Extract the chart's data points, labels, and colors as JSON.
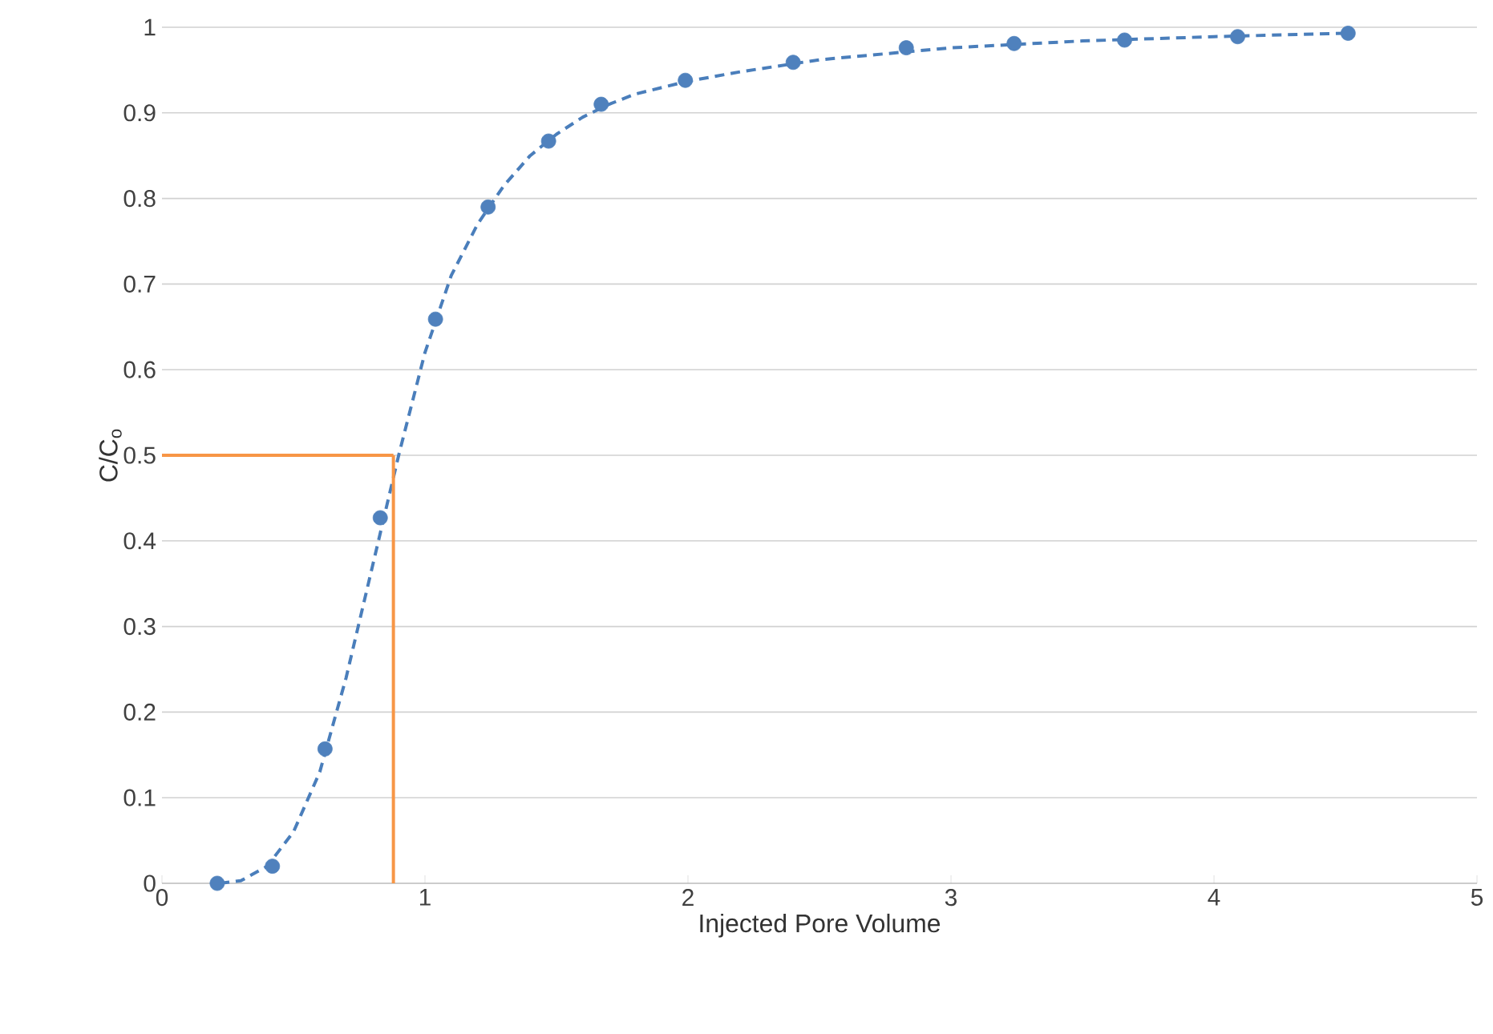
{
  "chart_data": {
    "type": "scatter",
    "xlabel": "Injected Pore Volume",
    "ylabel": "C/C$_{o}$",
    "xlim": [
      0,
      5
    ],
    "ylim": [
      0,
      1
    ],
    "xticks": [
      0,
      1,
      2,
      3,
      4,
      5
    ],
    "yticks": [
      0,
      0.1,
      0.2,
      0.3,
      0.4,
      0.5,
      0.6,
      0.7,
      0.8,
      0.9,
      1
    ],
    "grid": "y",
    "series": [
      {
        "type": "line",
        "color": "#4a7ebb",
        "line_style": "dashed",
        "marker": "none",
        "x": [
          0.22,
          0.3,
          0.4,
          0.5,
          0.6,
          0.7,
          0.8,
          0.9,
          1.0,
          1.1,
          1.2,
          1.3,
          1.4,
          1.5,
          1.6,
          1.7,
          1.8,
          2.0,
          2.2,
          2.5,
          3.0,
          3.5,
          4.0,
          4.5
        ],
        "values": [
          0,
          0.003,
          0.02,
          0.06,
          0.13,
          0.24,
          0.37,
          0.5,
          0.62,
          0.71,
          0.77,
          0.815,
          0.85,
          0.875,
          0.895,
          0.91,
          0.922,
          0.937,
          0.948,
          0.962,
          0.976,
          0.984,
          0.989,
          0.993
        ]
      },
      {
        "color": "#4f81bd",
        "marker": "circle",
        "x": [
          0.21,
          0.42,
          0.62,
          0.83,
          1.04,
          1.24,
          1.47,
          1.67,
          1.99,
          2.4,
          2.83,
          3.24,
          3.66,
          4.09,
          4.51
        ],
        "values": [
          0,
          0.02,
          0.157,
          0.427,
          0.659,
          0.79,
          0.867,
          0.91,
          0.938,
          0.959,
          0.976,
          0.981,
          0.985,
          0.989,
          0.993
        ]
      },
      {
        "type": "line",
        "color": "#f79646",
        "line_style": "solid",
        "marker": "none",
        "x": [
          0,
          0.88
        ],
        "values": [
          0.5,
          0.5
        ]
      },
      {
        "type": "line",
        "color": "#f79646",
        "line_style": "solid",
        "marker": "none",
        "x": [
          0.88,
          0.88
        ],
        "values": [
          0.5,
          0
        ]
      }
    ]
  }
}
